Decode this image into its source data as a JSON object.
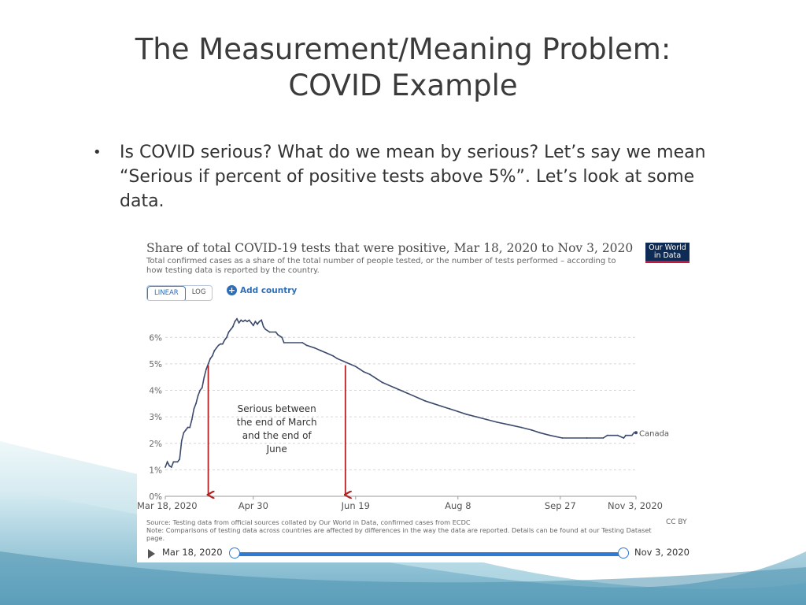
{
  "slide": {
    "title_lines": [
      "The Measurement/Meaning Problem:",
      "COVID Example"
    ],
    "bullet_text": "Is COVID serious? What do we mean by serious? Let’s say we mean “Serious if percent of positive tests above 5%”. Let’s look at some data."
  },
  "chart_header": {
    "title": "Share of total COVID-19 tests that were positive, Mar 18, 2020 to Nov 3, 2020",
    "subtitle": "Total confirmed cases as a share of the total number of people tested, or the number of tests performed – according to how testing data is reported by the country.",
    "logo_line1": "Our World",
    "logo_line2": "in Data",
    "toggle_linear": "LINEAR",
    "toggle_log": "LOG",
    "add_country": "Add country"
  },
  "chart_data": {
    "type": "line",
    "title": "Share of total COVID-19 tests that were positive, Mar 18, 2020 to Nov 3, 2020",
    "xlabel": "",
    "ylabel": "",
    "y_ticks": [
      "0%",
      "1%",
      "2%",
      "3%",
      "4%",
      "5%",
      "6%"
    ],
    "ylim": [
      0,
      6.9
    ],
    "x_ticks": [
      "Mar 18, 2020",
      "Apr 30",
      "Jun 19",
      "Aug 8",
      "Sep 27",
      "Nov 3, 2020"
    ],
    "x_tick_dates": [
      "2020-03-18",
      "2020-04-30",
      "2020-06-19",
      "2020-08-08",
      "2020-09-27",
      "2020-11-03"
    ],
    "xlim": [
      "2020-03-18",
      "2020-11-03"
    ],
    "grid": true,
    "series": [
      {
        "name": "Canada",
        "color": "#3b4a6b",
        "points": [
          [
            "2020-03-18",
            1.1
          ],
          [
            "2020-03-19",
            1.3
          ],
          [
            "2020-03-20",
            1.15
          ],
          [
            "2020-03-21",
            1.1
          ],
          [
            "2020-03-22",
            1.3
          ],
          [
            "2020-03-24",
            1.3
          ],
          [
            "2020-03-25",
            1.4
          ],
          [
            "2020-03-26",
            2.1
          ],
          [
            "2020-03-27",
            2.4
          ],
          [
            "2020-03-28",
            2.5
          ],
          [
            "2020-03-29",
            2.6
          ],
          [
            "2020-03-30",
            2.6
          ],
          [
            "2020-03-31",
            2.9
          ],
          [
            "2020-04-01",
            3.3
          ],
          [
            "2020-04-02",
            3.5
          ],
          [
            "2020-04-03",
            3.8
          ],
          [
            "2020-04-04",
            4.0
          ],
          [
            "2020-04-05",
            4.1
          ],
          [
            "2020-04-06",
            4.5
          ],
          [
            "2020-04-07",
            4.8
          ],
          [
            "2020-04-08",
            5.0
          ],
          [
            "2020-04-09",
            5.2
          ],
          [
            "2020-04-10",
            5.3
          ],
          [
            "2020-04-11",
            5.5
          ],
          [
            "2020-04-12",
            5.6
          ],
          [
            "2020-04-13",
            5.7
          ],
          [
            "2020-04-14",
            5.75
          ],
          [
            "2020-04-15",
            5.75
          ],
          [
            "2020-04-16",
            5.9
          ],
          [
            "2020-04-17",
            6.0
          ],
          [
            "2020-04-18",
            6.2
          ],
          [
            "2020-04-19",
            6.3
          ],
          [
            "2020-04-20",
            6.4
          ],
          [
            "2020-04-21",
            6.6
          ],
          [
            "2020-04-22",
            6.7
          ],
          [
            "2020-04-23",
            6.55
          ],
          [
            "2020-04-24",
            6.65
          ],
          [
            "2020-04-25",
            6.6
          ],
          [
            "2020-04-26",
            6.65
          ],
          [
            "2020-04-27",
            6.6
          ],
          [
            "2020-04-28",
            6.65
          ],
          [
            "2020-04-29",
            6.55
          ],
          [
            "2020-04-30",
            6.45
          ],
          [
            "2020-05-01",
            6.6
          ],
          [
            "2020-05-02",
            6.5
          ],
          [
            "2020-05-03",
            6.6
          ],
          [
            "2020-05-04",
            6.65
          ],
          [
            "2020-05-05",
            6.4
          ],
          [
            "2020-05-06",
            6.3
          ],
          [
            "2020-05-08",
            6.2
          ],
          [
            "2020-05-11",
            6.2
          ],
          [
            "2020-05-12",
            6.1
          ],
          [
            "2020-05-14",
            6.0
          ],
          [
            "2020-05-15",
            5.8
          ],
          [
            "2020-05-24",
            5.8
          ],
          [
            "2020-05-26",
            5.7
          ],
          [
            "2020-05-30",
            5.6
          ],
          [
            "2020-06-02",
            5.5
          ],
          [
            "2020-06-05",
            5.4
          ],
          [
            "2020-06-08",
            5.3
          ],
          [
            "2020-06-10",
            5.2
          ],
          [
            "2020-06-13",
            5.1
          ],
          [
            "2020-06-16",
            5.0
          ],
          [
            "2020-06-19",
            4.9
          ],
          [
            "2020-06-21",
            4.8
          ],
          [
            "2020-06-23",
            4.7
          ],
          [
            "2020-06-26",
            4.6
          ],
          [
            "2020-06-28",
            4.5
          ],
          [
            "2020-06-30",
            4.4
          ],
          [
            "2020-07-02",
            4.3
          ],
          [
            "2020-07-05",
            4.2
          ],
          [
            "2020-07-08",
            4.1
          ],
          [
            "2020-07-11",
            4.0
          ],
          [
            "2020-07-14",
            3.9
          ],
          [
            "2020-07-17",
            3.8
          ],
          [
            "2020-07-20",
            3.7
          ],
          [
            "2020-07-23",
            3.6
          ],
          [
            "2020-07-27",
            3.5
          ],
          [
            "2020-07-31",
            3.4
          ],
          [
            "2020-08-04",
            3.3
          ],
          [
            "2020-08-08",
            3.2
          ],
          [
            "2020-08-12",
            3.1
          ],
          [
            "2020-08-17",
            3.0
          ],
          [
            "2020-08-22",
            2.9
          ],
          [
            "2020-08-27",
            2.8
          ],
          [
            "2020-09-02",
            2.7
          ],
          [
            "2020-09-08",
            2.6
          ],
          [
            "2020-09-13",
            2.5
          ],
          [
            "2020-09-17",
            2.4
          ],
          [
            "2020-09-22",
            2.3
          ],
          [
            "2020-09-28",
            2.2
          ],
          [
            "2020-10-10",
            2.2
          ],
          [
            "2020-10-18",
            2.2
          ],
          [
            "2020-10-20",
            2.3
          ],
          [
            "2020-10-25",
            2.3
          ],
          [
            "2020-10-28",
            2.2
          ],
          [
            "2020-10-29",
            2.3
          ],
          [
            "2020-11-01",
            2.3
          ],
          [
            "2020-11-02",
            2.4
          ],
          [
            "2020-11-03",
            2.4
          ]
        ]
      }
    ],
    "annotation": {
      "text_lines": [
        "Serious between",
        "the end of March",
        "and the end of",
        "June"
      ],
      "arrow_dates": [
        "2020-04-08",
        "2020-06-14"
      ],
      "arrow_color": "#b22222"
    }
  },
  "chart_footer": {
    "source": "Source: Testing data from official sources collated by Our World in Data, confirmed cases from ECDC",
    "note": "Note: Comparisons of testing data across countries are affected by differences in the way the data are reported. Details can be found at our Testing Dataset page.",
    "license": "CC BY"
  },
  "timeline": {
    "start": "Mar 18, 2020",
    "end": "Nov 3, 2020"
  }
}
